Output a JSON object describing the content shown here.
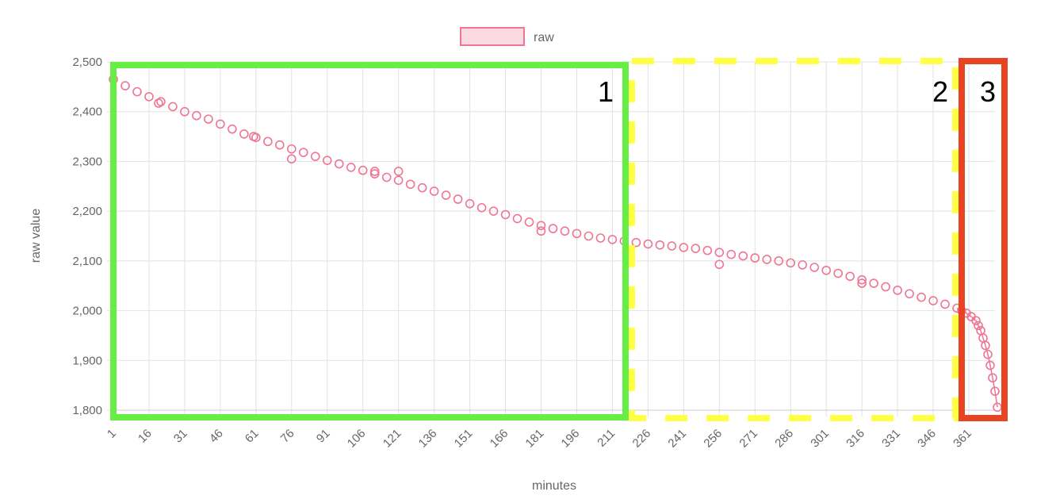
{
  "chart_data": {
    "type": "scatter",
    "legend": {
      "label": "raw",
      "position": "top-center"
    },
    "xlabel": "minutes",
    "ylabel": "raw value",
    "ylim": [
      1800,
      2500
    ],
    "xlim": [
      1,
      372
    ],
    "yticks": [
      1800,
      1900,
      2000,
      2100,
      2200,
      2300,
      2400,
      2500
    ],
    "ytick_labels": [
      "1,800",
      "1,900",
      "2,000",
      "2,100",
      "2,200",
      "2,300",
      "2,400",
      "2,500"
    ],
    "xtick_labels": [
      "1",
      "16",
      "31",
      "46",
      "61",
      "76",
      "91",
      "106",
      "121",
      "136",
      "151",
      "166",
      "181",
      "196",
      "211",
      "226",
      "241",
      "256",
      "271",
      "286",
      "301",
      "316",
      "331",
      "346",
      "361"
    ],
    "xtick_values": [
      1,
      16,
      31,
      46,
      61,
      76,
      91,
      106,
      121,
      136,
      151,
      166,
      181,
      196,
      211,
      226,
      241,
      256,
      271,
      286,
      301,
      316,
      331,
      346,
      361
    ],
    "grid": true,
    "series": [
      {
        "name": "raw",
        "color": "#ef7595",
        "fill": "#fbd9e1",
        "points": [
          [
            1,
            2465
          ],
          [
            6,
            2452
          ],
          [
            11,
            2440
          ],
          [
            16,
            2430
          ],
          [
            21,
            2420
          ],
          [
            26,
            2410
          ],
          [
            31,
            2400
          ],
          [
            36,
            2392
          ],
          [
            41,
            2385
          ],
          [
            46,
            2375
          ],
          [
            51,
            2365
          ],
          [
            56,
            2355
          ],
          [
            61,
            2348
          ],
          [
            66,
            2340
          ],
          [
            71,
            2333
          ],
          [
            76,
            2325
          ],
          [
            81,
            2318
          ],
          [
            86,
            2310
          ],
          [
            91,
            2302
          ],
          [
            96,
            2295
          ],
          [
            101,
            2288
          ],
          [
            106,
            2282
          ],
          [
            111,
            2275
          ],
          [
            116,
            2268
          ],
          [
            121,
            2262
          ],
          [
            126,
            2254
          ],
          [
            131,
            2247
          ],
          [
            136,
            2240
          ],
          [
            141,
            2232
          ],
          [
            146,
            2224
          ],
          [
            151,
            2215
          ],
          [
            156,
            2207
          ],
          [
            161,
            2200
          ],
          [
            166,
            2193
          ],
          [
            171,
            2185
          ],
          [
            176,
            2178
          ],
          [
            181,
            2171
          ],
          [
            186,
            2165
          ],
          [
            191,
            2160
          ],
          [
            196,
            2155
          ],
          [
            201,
            2150
          ],
          [
            206,
            2146
          ],
          [
            211,
            2143
          ],
          [
            216,
            2140
          ],
          [
            221,
            2137
          ],
          [
            226,
            2134
          ],
          [
            231,
            2132
          ],
          [
            236,
            2130
          ],
          [
            241,
            2127
          ],
          [
            246,
            2125
          ],
          [
            251,
            2121
          ],
          [
            256,
            2117
          ],
          [
            261,
            2113
          ],
          [
            266,
            2110
          ],
          [
            271,
            2106
          ],
          [
            276,
            2103
          ],
          [
            281,
            2100
          ],
          [
            286,
            2096
          ],
          [
            291,
            2092
          ],
          [
            296,
            2087
          ],
          [
            301,
            2081
          ],
          [
            306,
            2075
          ],
          [
            311,
            2069
          ],
          [
            316,
            2062
          ],
          [
            321,
            2055
          ],
          [
            326,
            2048
          ],
          [
            331,
            2041
          ],
          [
            336,
            2034
          ],
          [
            341,
            2027
          ],
          [
            346,
            2020
          ],
          [
            351,
            2013
          ],
          [
            356,
            2005
          ],
          [
            358,
            2000
          ],
          [
            360,
            1995
          ],
          [
            362,
            1988
          ],
          [
            364,
            1980
          ],
          [
            365,
            1970
          ],
          [
            366,
            1960
          ],
          [
            367,
            1945
          ],
          [
            368,
            1930
          ],
          [
            369,
            1912
          ],
          [
            370,
            1890
          ],
          [
            371,
            1865
          ],
          [
            372,
            1838
          ],
          [
            373,
            1806
          ],
          [
            76,
            2305
          ],
          [
            121,
            2280
          ],
          [
            256,
            2093
          ],
          [
            181,
            2160
          ],
          [
            316,
            2055
          ],
          [
            20,
            2417
          ],
          [
            60,
            2350
          ],
          [
            111,
            2280
          ]
        ]
      }
    ],
    "annotations": [
      {
        "label": "1",
        "x_range": [
          1,
          217
        ],
        "color": "#66ee44",
        "style": "solid"
      },
      {
        "label": "2",
        "x_range": [
          217,
          359
        ],
        "color": "#ffff44",
        "style": "dashed"
      },
      {
        "label": "3",
        "x_range": [
          359,
          375
        ],
        "color": "#e84422",
        "style": "solid"
      }
    ]
  }
}
